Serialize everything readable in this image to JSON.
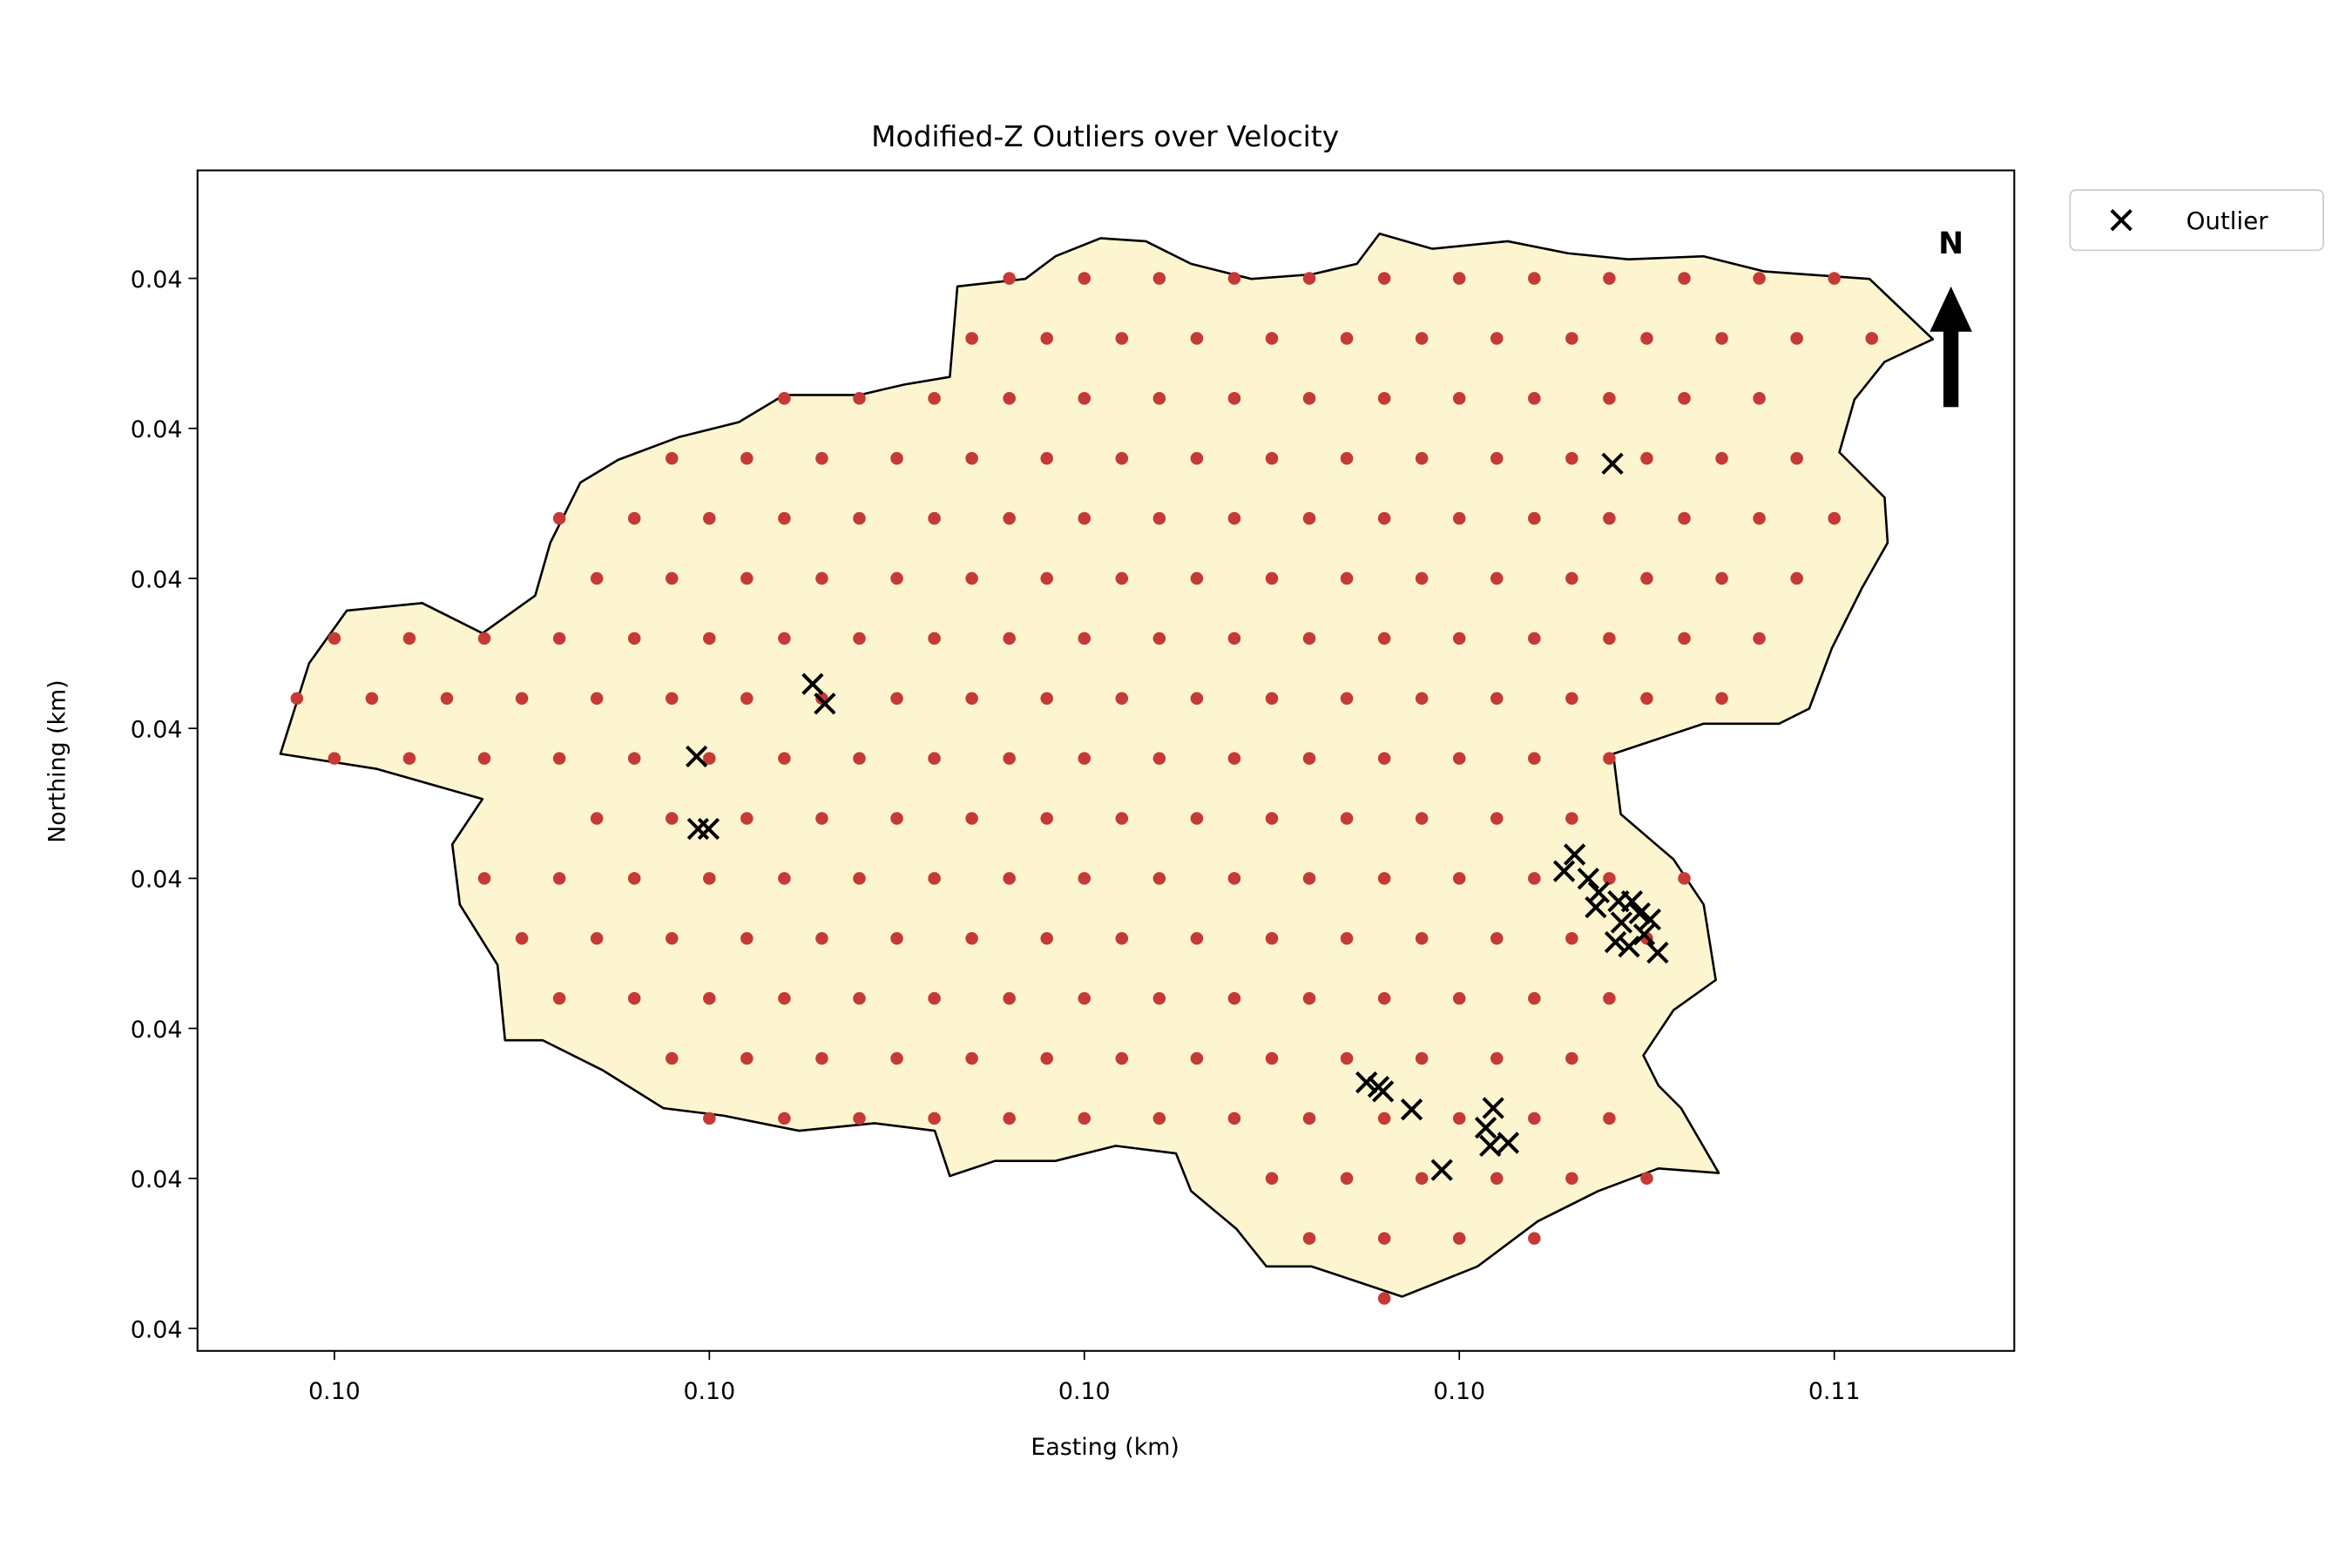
{
  "chart_data": {
    "type": "scatter",
    "title": "Modified-Z Outliers over Velocity",
    "x_label": "Easting (km)",
    "y_label": "Northing (km)",
    "north_label": "N",
    "xlim": [
      0.09727,
      0.10696
    ],
    "ylim": [
      0.03685,
      0.04472
    ],
    "grid": false,
    "legend": "outside-upper-right",
    "xticks": [
      {
        "value": 0.098,
        "label": "0.10"
      },
      {
        "value": 0.1,
        "label": "0.10"
      },
      {
        "value": 0.102,
        "label": "0.10"
      },
      {
        "value": 0.104,
        "label": "0.10"
      },
      {
        "value": 0.106,
        "label": "0.11"
      }
    ],
    "yticks": [
      {
        "value": 0.037,
        "label": "0.04"
      },
      {
        "value": 0.038,
        "label": "0.04"
      },
      {
        "value": 0.039,
        "label": "0.04"
      },
      {
        "value": 0.04,
        "label": "0.04"
      },
      {
        "value": 0.041,
        "label": "0.04"
      },
      {
        "value": 0.042,
        "label": "0.04"
      },
      {
        "value": 0.043,
        "label": "0.04"
      },
      {
        "value": 0.044,
        "label": "0.04"
      }
    ],
    "series": [
      {
        "color": "#c53a36",
        "marker": "dot",
        "x": [
          0.1016,
          0.102,
          0.1024,
          0.1028,
          0.1032,
          0.1036,
          0.104,
          0.1044,
          0.1048,
          0.1052,
          0.1056,
          0.106,
          0.1014,
          0.1018,
          0.1022,
          0.1026,
          0.103,
          0.1034,
          0.1038,
          0.1042,
          0.1046,
          0.105,
          0.1054,
          0.1058,
          0.1062,
          0.1004,
          0.1008,
          0.1012,
          0.1016,
          0.102,
          0.1024,
          0.1028,
          0.1032,
          0.1036,
          0.104,
          0.1044,
          0.1048,
          0.1052,
          0.1056,
          0.0998,
          0.1002,
          0.1006,
          0.101,
          0.1014,
          0.1018,
          0.1022,
          0.1026,
          0.103,
          0.1034,
          0.1038,
          0.1042,
          0.1046,
          0.105,
          0.1054,
          0.1058,
          0.0992,
          0.0996,
          0.1,
          0.1004,
          0.1008,
          0.1012,
          0.1016,
          0.102,
          0.1024,
          0.1028,
          0.1032,
          0.1036,
          0.104,
          0.1044,
          0.1048,
          0.1052,
          0.1056,
          0.106,
          0.0994,
          0.0998,
          0.1002,
          0.1006,
          0.101,
          0.1014,
          0.1018,
          0.1022,
          0.1026,
          0.103,
          0.1034,
          0.1038,
          0.1042,
          0.1046,
          0.105,
          0.1054,
          0.1058,
          0.098,
          0.0984,
          0.0988,
          0.0992,
          0.0996,
          0.1,
          0.1004,
          0.1008,
          0.1012,
          0.1016,
          0.102,
          0.1024,
          0.1028,
          0.1032,
          0.1036,
          0.104,
          0.1044,
          0.1048,
          0.1052,
          0.1056,
          0.0978,
          0.0982,
          0.0986,
          0.099,
          0.0994,
          0.0998,
          0.1002,
          0.1006,
          0.101,
          0.1014,
          0.1018,
          0.1022,
          0.1026,
          0.103,
          0.1034,
          0.1038,
          0.1042,
          0.1046,
          0.105,
          0.1054,
          0.098,
          0.0984,
          0.0988,
          0.0992,
          0.0996,
          0.1,
          0.1004,
          0.1008,
          0.1012,
          0.1016,
          0.102,
          0.1024,
          0.1028,
          0.1032,
          0.1036,
          0.104,
          0.1044,
          0.1048,
          0.0994,
          0.0998,
          0.1002,
          0.1006,
          0.101,
          0.1014,
          0.1018,
          0.1022,
          0.1026,
          0.103,
          0.1034,
          0.1038,
          0.1042,
          0.1046,
          0.0988,
          0.0992,
          0.0996,
          0.1,
          0.1004,
          0.1008,
          0.1012,
          0.1016,
          0.102,
          0.1024,
          0.1028,
          0.1032,
          0.1036,
          0.104,
          0.1044,
          0.1048,
          0.1052,
          0.099,
          0.0994,
          0.0998,
          0.1002,
          0.1006,
          0.101,
          0.1014,
          0.1018,
          0.1022,
          0.1026,
          0.103,
          0.1034,
          0.1038,
          0.1042,
          0.1046,
          0.105,
          0.0992,
          0.0996,
          0.1,
          0.1004,
          0.1008,
          0.1012,
          0.1016,
          0.102,
          0.1024,
          0.1028,
          0.1032,
          0.1036,
          0.104,
          0.1044,
          0.1048,
          0.0998,
          0.1002,
          0.1006,
          0.101,
          0.1014,
          0.1018,
          0.1022,
          0.1026,
          0.103,
          0.1034,
          0.1038,
          0.1042,
          0.1046,
          0.1,
          0.1004,
          0.1008,
          0.1012,
          0.1016,
          0.102,
          0.1024,
          0.1028,
          0.1032,
          0.1036,
          0.104,
          0.1044,
          0.1048,
          0.103,
          0.1034,
          0.1038,
          0.1042,
          0.1046,
          0.105,
          0.1032,
          0.1036,
          0.104,
          0.1044,
          0.1036
        ],
        "y": [
          0.044,
          0.044,
          0.044,
          0.044,
          0.044,
          0.044,
          0.044,
          0.044,
          0.044,
          0.044,
          0.044,
          0.044,
          0.0436,
          0.0436,
          0.0436,
          0.0436,
          0.0436,
          0.0436,
          0.0436,
          0.0436,
          0.0436,
          0.0436,
          0.0436,
          0.0436,
          0.0436,
          0.0432,
          0.0432,
          0.0432,
          0.0432,
          0.0432,
          0.0432,
          0.0432,
          0.0432,
          0.0432,
          0.0432,
          0.0432,
          0.0432,
          0.0432,
          0.0432,
          0.0428,
          0.0428,
          0.0428,
          0.0428,
          0.0428,
          0.0428,
          0.0428,
          0.0428,
          0.0428,
          0.0428,
          0.0428,
          0.0428,
          0.0428,
          0.0428,
          0.0428,
          0.0428,
          0.0424,
          0.0424,
          0.0424,
          0.0424,
          0.0424,
          0.0424,
          0.0424,
          0.0424,
          0.0424,
          0.0424,
          0.0424,
          0.0424,
          0.0424,
          0.0424,
          0.0424,
          0.0424,
          0.0424,
          0.0424,
          0.042,
          0.042,
          0.042,
          0.042,
          0.042,
          0.042,
          0.042,
          0.042,
          0.042,
          0.042,
          0.042,
          0.042,
          0.042,
          0.042,
          0.042,
          0.042,
          0.042,
          0.0416,
          0.0416,
          0.0416,
          0.0416,
          0.0416,
          0.0416,
          0.0416,
          0.0416,
          0.0416,
          0.0416,
          0.0416,
          0.0416,
          0.0416,
          0.0416,
          0.0416,
          0.0416,
          0.0416,
          0.0416,
          0.0416,
          0.0416,
          0.0412,
          0.0412,
          0.0412,
          0.0412,
          0.0412,
          0.0412,
          0.0412,
          0.0412,
          0.0412,
          0.0412,
          0.0412,
          0.0412,
          0.0412,
          0.0412,
          0.0412,
          0.0412,
          0.0412,
          0.0412,
          0.0412,
          0.0412,
          0.0408,
          0.0408,
          0.0408,
          0.0408,
          0.0408,
          0.0408,
          0.0408,
          0.0408,
          0.0408,
          0.0408,
          0.0408,
          0.0408,
          0.0408,
          0.0408,
          0.0408,
          0.0408,
          0.0408,
          0.0408,
          0.0404,
          0.0404,
          0.0404,
          0.0404,
          0.0404,
          0.0404,
          0.0404,
          0.0404,
          0.0404,
          0.0404,
          0.0404,
          0.0404,
          0.0404,
          0.0404,
          0.04,
          0.04,
          0.04,
          0.04,
          0.04,
          0.04,
          0.04,
          0.04,
          0.04,
          0.04,
          0.04,
          0.04,
          0.04,
          0.04,
          0.04,
          0.04,
          0.04,
          0.0396,
          0.0396,
          0.0396,
          0.0396,
          0.0396,
          0.0396,
          0.0396,
          0.0396,
          0.0396,
          0.0396,
          0.0396,
          0.0396,
          0.0396,
          0.0396,
          0.0396,
          0.0396,
          0.0392,
          0.0392,
          0.0392,
          0.0392,
          0.0392,
          0.0392,
          0.0392,
          0.0392,
          0.0392,
          0.0392,
          0.0392,
          0.0392,
          0.0392,
          0.0392,
          0.0392,
          0.0388,
          0.0388,
          0.0388,
          0.0388,
          0.0388,
          0.0388,
          0.0388,
          0.0388,
          0.0388,
          0.0388,
          0.0388,
          0.0388,
          0.0388,
          0.0384,
          0.0384,
          0.0384,
          0.0384,
          0.0384,
          0.0384,
          0.0384,
          0.0384,
          0.0384,
          0.0384,
          0.0384,
          0.0384,
          0.0384,
          0.038,
          0.038,
          0.038,
          0.038,
          0.038,
          0.038,
          0.0376,
          0.0376,
          0.0376,
          0.0376,
          0.0372
        ]
      },
      {
        "name": "Outlier",
        "color": "#000000",
        "marker": "x",
        "x": [
          0.104817,
          0.100551,
          0.100616,
          0.099932,
          0.09994,
          0.099996,
          0.104559,
          0.104615,
          0.104688,
          0.104744,
          0.104728,
          0.104849,
          0.104921,
          0.104962,
          0.105018,
          0.104865,
          0.104833,
          0.104905,
          0.104986,
          0.105058,
          0.103505,
          0.103569,
          0.103593,
          0.103746,
          0.104181,
          0.104141,
          0.104165,
          0.104261,
          0.103907
        ],
        "y": [
          0.042765,
          0.041296,
          0.041165,
          0.040813,
          0.04033,
          0.04033,
          0.040048,
          0.040159,
          0.039998,
          0.039907,
          0.039807,
          0.039847,
          0.039847,
          0.039767,
          0.039726,
          0.039706,
          0.039575,
          0.039545,
          0.039626,
          0.039505,
          0.03864,
          0.03861,
          0.03858,
          0.038459,
          0.038469,
          0.038338,
          0.038217,
          0.038237,
          0.038056
        ]
      }
    ]
  }
}
